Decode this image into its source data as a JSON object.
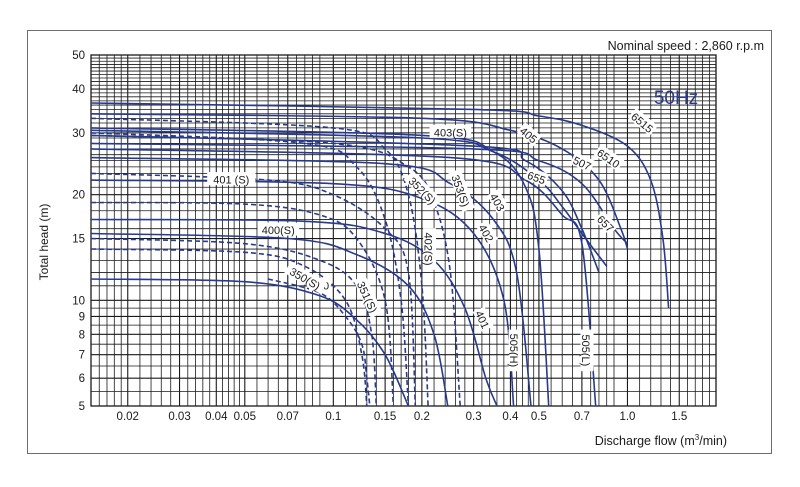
{
  "chart_data": {
    "type": "line",
    "title": "",
    "annotation": "Nominal speed : 2,860 r.p.m",
    "frequency_label": "50Hz",
    "xlabel_prefix": "Discharge flow (m",
    "xlabel_sup": "3",
    "xlabel_suffix": "/min)",
    "ylabel": "Total head (m)",
    "x_scale": "log",
    "y_scale": "log",
    "xlim": [
      0.015,
      2.0
    ],
    "ylim": [
      5,
      50
    ],
    "grid": true,
    "x_ticks": [
      0.02,
      0.03,
      0.04,
      0.05,
      0.07,
      0.1,
      0.15,
      0.2,
      0.3,
      0.4,
      0.5,
      0.7,
      1.0,
      1.5
    ],
    "x_tick_labels": [
      "0.02",
      "0.03",
      "0.04",
      "0.05",
      "0.07",
      "0.1",
      "0.15",
      "0.2",
      "0.3",
      "0.4",
      "0.5",
      "0.7",
      "1.0",
      "1.5"
    ],
    "y_ticks": [
      5,
      6,
      7,
      8,
      9,
      10,
      15,
      20,
      30,
      40,
      50
    ],
    "y_tick_labels": [
      "5",
      "6",
      "7",
      "8",
      "9",
      "10",
      "15",
      "20",
      "30",
      "40",
      "50"
    ],
    "colors": {
      "curve": "#283a8e",
      "grid": "#1a1a1a",
      "text": "#1a1a1a",
      "freq": "#283a8e"
    },
    "series": [
      {
        "name": "6515",
        "style": "solid",
        "points": [
          [
            0.015,
            36.5
          ],
          [
            0.3,
            35
          ],
          [
            0.5,
            33.5
          ],
          [
            0.7,
            31.5
          ],
          [
            1.0,
            27.5
          ],
          [
            1.2,
            22
          ],
          [
            1.32,
            15
          ],
          [
            1.38,
            9.5
          ]
        ]
      },
      {
        "name": "6510",
        "style": "solid",
        "points": [
          [
            0.015,
            34
          ],
          [
            0.2,
            33
          ],
          [
            0.4,
            30.5
          ],
          [
            0.6,
            27
          ],
          [
            0.8,
            22
          ],
          [
            0.95,
            16
          ],
          [
            1.0,
            14
          ]
        ]
      },
      {
        "name": "655",
        "style": "solid",
        "points": [
          [
            0.015,
            30.5
          ],
          [
            0.2,
            29
          ],
          [
            0.35,
            26.5
          ],
          [
            0.5,
            22
          ],
          [
            0.6,
            18.5
          ],
          [
            0.7,
            15.5
          ],
          [
            0.85,
            12.5
          ]
        ]
      },
      {
        "name": "657",
        "style": "solid",
        "points": [
          [
            0.015,
            28
          ],
          [
            0.3,
            27
          ],
          [
            0.5,
            25
          ],
          [
            0.7,
            21.5
          ],
          [
            0.9,
            16
          ],
          [
            1.0,
            14.5
          ]
        ]
      },
      {
        "name": "507",
        "style": "solid",
        "points": [
          [
            0.015,
            29.5
          ],
          [
            0.3,
            27.5
          ],
          [
            0.45,
            25
          ],
          [
            0.6,
            20.5
          ],
          [
            0.7,
            16
          ],
          [
            0.8,
            12
          ]
        ]
      },
      {
        "name": "505(L)",
        "style": "solid",
        "points": [
          [
            0.015,
            27
          ],
          [
            0.25,
            25.5
          ],
          [
            0.45,
            22
          ],
          [
            0.6,
            17.5
          ],
          [
            0.7,
            14.5
          ],
          [
            0.78,
            5
          ]
        ]
      },
      {
        "name": "505(H)",
        "style": "solid",
        "points": [
          [
            0.015,
            31
          ],
          [
            0.2,
            29.5
          ],
          [
            0.35,
            26.5
          ],
          [
            0.45,
            21
          ],
          [
            0.5,
            14
          ],
          [
            0.54,
            5
          ]
        ]
      },
      {
        "name": "405",
        "style": "solid",
        "points": [
          [
            0.015,
            25.5
          ],
          [
            0.15,
            24.5
          ],
          [
            0.25,
            21.5
          ],
          [
            0.35,
            17
          ],
          [
            0.42,
            12
          ],
          [
            0.47,
            5
          ]
        ]
      },
      {
        "name": "403",
        "style": "solid",
        "points": [
          [
            0.015,
            22
          ],
          [
            0.1,
            21.5
          ],
          [
            0.2,
            19.5
          ],
          [
            0.3,
            15.5
          ],
          [
            0.38,
            10
          ],
          [
            0.41,
            5
          ]
        ]
      },
      {
        "name": "402",
        "style": "solid",
        "points": [
          [
            0.015,
            17
          ],
          [
            0.08,
            16.8
          ],
          [
            0.15,
            15.5
          ],
          [
            0.22,
            13
          ],
          [
            0.28,
            9.5
          ],
          [
            0.33,
            6
          ],
          [
            0.36,
            5
          ]
        ]
      },
      {
        "name": "401",
        "style": "solid",
        "points": [
          [
            0.015,
            15.5
          ],
          [
            0.07,
            15
          ],
          [
            0.12,
            13.5
          ],
          [
            0.18,
            11
          ],
          [
            0.22,
            8
          ],
          [
            0.245,
            5
          ]
        ]
      },
      {
        "name": "400",
        "style": "solid",
        "points": [
          [
            0.015,
            11.5
          ],
          [
            0.05,
            11.3
          ],
          [
            0.09,
            10.3
          ],
          [
            0.12,
            8.8
          ],
          [
            0.15,
            7
          ],
          [
            0.18,
            5
          ]
        ]
      },
      {
        "name": "403(S)",
        "style": "dashed",
        "points": [
          [
            0.015,
            29.5
          ],
          [
            0.1,
            28
          ],
          [
            0.18,
            24
          ],
          [
            0.22,
            19
          ],
          [
            0.25,
            12
          ],
          [
            0.27,
            5
          ]
        ]
      },
      {
        "name": "353(S)",
        "style": "dashed",
        "points": [
          [
            0.015,
            33
          ],
          [
            0.1,
            31
          ],
          [
            0.15,
            27
          ],
          [
            0.18,
            20
          ],
          [
            0.2,
            11
          ],
          [
            0.21,
            5
          ]
        ]
      },
      {
        "name": "352(S)",
        "style": "dashed",
        "points": [
          [
            0.015,
            30
          ],
          [
            0.08,
            28
          ],
          [
            0.12,
            24
          ],
          [
            0.15,
            17
          ],
          [
            0.17,
            10
          ],
          [
            0.18,
            5
          ]
        ]
      },
      {
        "name": "402(S)",
        "style": "dashed",
        "points": [
          [
            0.015,
            23
          ],
          [
            0.06,
            22
          ],
          [
            0.1,
            20
          ],
          [
            0.15,
            16
          ],
          [
            0.18,
            12
          ],
          [
            0.19,
            5
          ]
        ]
      },
      {
        "name": "401(S)",
        "style": "dashed",
        "points": [
          [
            0.015,
            19
          ],
          [
            0.05,
            18.8
          ],
          [
            0.09,
            17.5
          ],
          [
            0.12,
            15
          ],
          [
            0.15,
            10
          ],
          [
            0.16,
            5
          ]
        ]
      },
      {
        "name": "400(S)",
        "style": "dashed",
        "points": [
          [
            0.015,
            15
          ],
          [
            0.05,
            14.5
          ],
          [
            0.09,
            13
          ],
          [
            0.12,
            11
          ],
          [
            0.135,
            8
          ],
          [
            0.14,
            5
          ]
        ]
      },
      {
        "name": "350(S)",
        "style": "dashed",
        "points": [
          [
            0.015,
            14
          ],
          [
            0.05,
            13.7
          ],
          [
            0.08,
            12.5
          ],
          [
            0.11,
            10
          ],
          [
            0.125,
            7
          ],
          [
            0.13,
            5
          ]
        ]
      },
      {
        "name": "351(S)",
        "style": "dashed",
        "points": [
          [
            0.06,
            11.5
          ],
          [
            0.09,
            10.5
          ],
          [
            0.11,
            9
          ],
          [
            0.125,
            7.5
          ],
          [
            0.13,
            6
          ],
          [
            0.133,
            5
          ]
        ]
      }
    ],
    "curve_labels": [
      {
        "text": "6515",
        "x": 1.12,
        "y": 32,
        "rot": 40
      },
      {
        "text": "6510",
        "x": 0.86,
        "y": 25.3,
        "rot": 35
      },
      {
        "text": "507",
        "x": 0.7,
        "y": 24.5,
        "rot": 25
      },
      {
        "text": "655",
        "x": 0.49,
        "y": 22.3,
        "rot": 20
      },
      {
        "text": "657",
        "x": 0.84,
        "y": 16.5,
        "rot": 45
      },
      {
        "text": "405",
        "x": 0.46,
        "y": 29.5,
        "rot": 40
      },
      {
        "text": "403",
        "x": 0.36,
        "y": 19,
        "rot": 60
      },
      {
        "text": "402",
        "x": 0.33,
        "y": 15.5,
        "rot": 60
      },
      {
        "text": "401",
        "x": 0.32,
        "y": 8.8,
        "rot": 65
      },
      {
        "text": "400",
        "x": 0.09,
        "y": 11,
        "rot": 0
      },
      {
        "text": "403(S)",
        "x": 0.25,
        "y": 30,
        "rot": 0
      },
      {
        "text": "353(S)",
        "x": 0.27,
        "y": 20.5,
        "rot": 70
      },
      {
        "text": "352(S)",
        "x": 0.2,
        "y": 20.5,
        "rot": 45
      },
      {
        "text": "402(S)",
        "x": 0.21,
        "y": 14,
        "rot": 90
      },
      {
        "text": "401 (S)",
        "x": 0.045,
        "y": 22,
        "rot": 0
      },
      {
        "text": "400(S)",
        "x": 0.065,
        "y": 15.8,
        "rot": 0
      },
      {
        "text": "350(S)",
        "x": 0.08,
        "y": 11.5,
        "rot": 30
      },
      {
        "text": "351(S)",
        "x": 0.13,
        "y": 10.2,
        "rot": 65
      },
      {
        "text": "505(H)",
        "x": 0.41,
        "y": 7.2,
        "rot": 90
      },
      {
        "text": "505(L)",
        "x": 0.72,
        "y": 7.2,
        "rot": 90
      }
    ]
  }
}
